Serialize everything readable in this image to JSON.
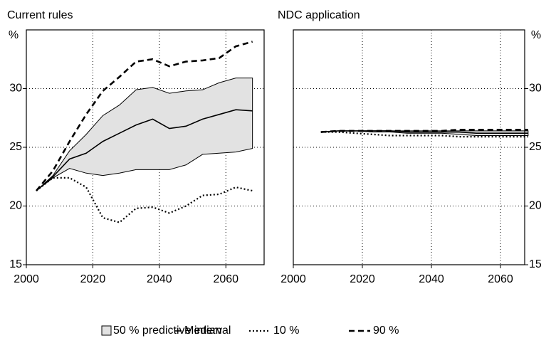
{
  "chart_data": [
    {
      "type": "line",
      "title": "Current rules",
      "ylabel": "%",
      "yaxis_side": "left",
      "grid": true,
      "x": [
        2003,
        2008,
        2013,
        2018,
        2023,
        2028,
        2033,
        2038,
        2043,
        2048,
        2053,
        2058,
        2063,
        2068
      ],
      "xlim": [
        2000,
        2071.5
      ],
      "xticks": [
        2000,
        2020,
        2040,
        2060
      ],
      "ylim": [
        15,
        35
      ],
      "yticks": [
        15,
        20,
        25,
        30
      ],
      "interval": {
        "lower": [
          21.3,
          22.4,
          23.2,
          22.8,
          22.6,
          22.8,
          23.1,
          23.1,
          23.1,
          23.5,
          24.4,
          24.5,
          24.6,
          24.9
        ],
        "upper": [
          21.3,
          22.6,
          24.7,
          26.1,
          27.7,
          28.6,
          29.9,
          30.1,
          29.6,
          29.8,
          29.9,
          30.5,
          30.9,
          30.9
        ]
      },
      "series": [
        {
          "style": "solid",
          "values": [
            21.3,
            22.5,
            24.0,
            24.5,
            25.5,
            26.2,
            26.9,
            27.4,
            26.6,
            26.8,
            27.4,
            27.8,
            28.2,
            28.1
          ]
        },
        {
          "style": "dotted",
          "values": [
            21.3,
            22.4,
            22.4,
            21.6,
            19.0,
            18.6,
            19.8,
            19.9,
            19.4,
            20.0,
            20.9,
            21.0,
            21.6,
            21.3
          ]
        },
        {
          "style": "dashed",
          "values": [
            21.3,
            23.0,
            25.5,
            27.8,
            29.8,
            31.0,
            32.3,
            32.5,
            31.9,
            32.3,
            32.4,
            32.6,
            33.6,
            34.0
          ]
        }
      ]
    },
    {
      "type": "line",
      "title": "NDC application",
      "ylabel": "%",
      "yaxis_side": "right",
      "grid": true,
      "x": [
        2008,
        2013,
        2018,
        2023,
        2028,
        2033,
        2038,
        2043,
        2048,
        2053,
        2058,
        2063,
        2068
      ],
      "xlim": [
        2000,
        2067
      ],
      "xticks": [
        2000,
        2020,
        2040,
        2060
      ],
      "ylim": [
        15,
        35
      ],
      "yticks": [
        15,
        20,
        25,
        30
      ],
      "interval": {
        "lower": [
          26.3,
          26.4,
          26.4,
          26.3,
          26.3,
          26.2,
          26.2,
          26.2,
          26.1,
          26.0,
          26.0,
          26.0,
          26.0
        ],
        "upper": [
          26.3,
          26.4,
          26.4,
          26.4,
          26.4,
          26.4,
          26.4,
          26.4,
          26.4,
          26.4,
          26.4,
          26.4,
          26.4
        ]
      },
      "series": [
        {
          "style": "solid",
          "values": [
            26.3,
            26.4,
            26.4,
            26.4,
            26.4,
            26.3,
            26.3,
            26.3,
            26.3,
            26.2,
            26.2,
            26.2,
            26.2
          ]
        },
        {
          "style": "dotted",
          "values": [
            26.3,
            26.3,
            26.2,
            26.1,
            26.0,
            26.0,
            26.0,
            26.0,
            25.9,
            25.9,
            25.9,
            25.9,
            25.9
          ]
        },
        {
          "style": "dashed",
          "values": [
            26.3,
            26.4,
            26.4,
            26.4,
            26.4,
            26.4,
            26.4,
            26.4,
            26.5,
            26.5,
            26.5,
            26.5,
            26.5
          ]
        }
      ]
    }
  ],
  "legend": [
    {
      "label": "50 % predictive interval",
      "style": "band"
    },
    {
      "label": "Median",
      "style": "solid"
    },
    {
      "label": "10 %",
      "style": "dotted"
    },
    {
      "label": "90 %",
      "style": "dashed"
    }
  ]
}
